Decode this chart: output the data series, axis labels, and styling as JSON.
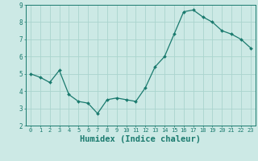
{
  "x": [
    0,
    1,
    2,
    3,
    4,
    5,
    6,
    7,
    8,
    9,
    10,
    11,
    12,
    13,
    14,
    15,
    16,
    17,
    18,
    19,
    20,
    21,
    22,
    23
  ],
  "y": [
    5.0,
    4.8,
    4.5,
    5.2,
    3.8,
    3.4,
    3.3,
    2.7,
    3.5,
    3.6,
    3.5,
    3.4,
    4.2,
    5.4,
    6.0,
    7.3,
    8.6,
    8.7,
    8.3,
    8.0,
    7.5,
    7.3,
    7.0,
    6.5
  ],
  "xlim": [
    -0.5,
    23.5
  ],
  "ylim": [
    2,
    9
  ],
  "xticks": [
    0,
    1,
    2,
    3,
    4,
    5,
    6,
    7,
    8,
    9,
    10,
    11,
    12,
    13,
    14,
    15,
    16,
    17,
    18,
    19,
    20,
    21,
    22,
    23
  ],
  "yticks": [
    2,
    3,
    4,
    5,
    6,
    7,
    8,
    9
  ],
  "xlabel": "Humidex (Indice chaleur)",
  "line_color": "#1a7a6e",
  "marker_color": "#1a7a6e",
  "bg_color": "#cce9e5",
  "grid_color": "#aad4ce",
  "xlabel_fontsize": 7.5
}
